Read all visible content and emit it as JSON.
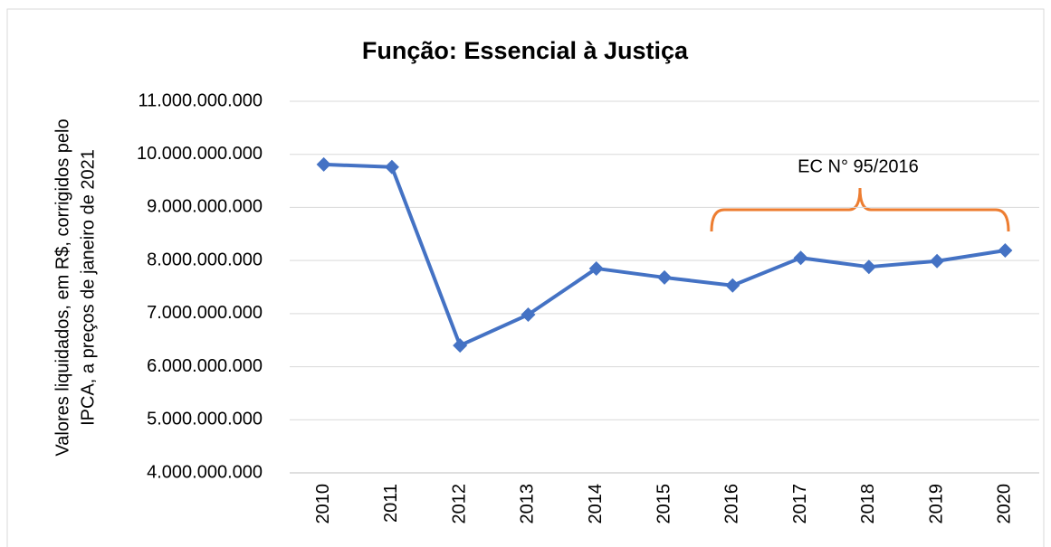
{
  "chart_data": {
    "type": "line",
    "title": "Função: Essencial à Justiça",
    "ylabel": [
      "Valores liquidados, em R$, corrigidos pelo",
      "IPCA, a preços de janeiro de 2021"
    ],
    "categories": [
      "2010",
      "2011",
      "2012",
      "2013",
      "2014",
      "2015",
      "2016",
      "2017",
      "2018",
      "2019",
      "2020"
    ],
    "series": [
      {
        "name": "Essencial à Justiça",
        "color": "#4472c4",
        "values": [
          9810000000,
          9760000000,
          6400000000,
          6980000000,
          7850000000,
          7680000000,
          7530000000,
          8050000000,
          7880000000,
          7990000000,
          8190000000
        ]
      }
    ],
    "ylim": [
      4000000000,
      11000000000
    ],
    "yticks": [
      {
        "value": 4000000000,
        "label": "4.000.000.000"
      },
      {
        "value": 5000000000,
        "label": "5.000.000.000"
      },
      {
        "value": 6000000000,
        "label": "6.000.000.000"
      },
      {
        "value": 7000000000,
        "label": "7.000.000.000"
      },
      {
        "value": 8000000000,
        "label": "8.000.000.000"
      },
      {
        "value": 9000000000,
        "label": "9.000.000.000"
      },
      {
        "value": 10000000000,
        "label": "10.000.000.000"
      },
      {
        "value": 11000000000,
        "label": "11.000.000.000"
      }
    ],
    "grid": true,
    "annotation": {
      "text": "EC N° 95/2016",
      "color": "#ed7d31"
    }
  }
}
